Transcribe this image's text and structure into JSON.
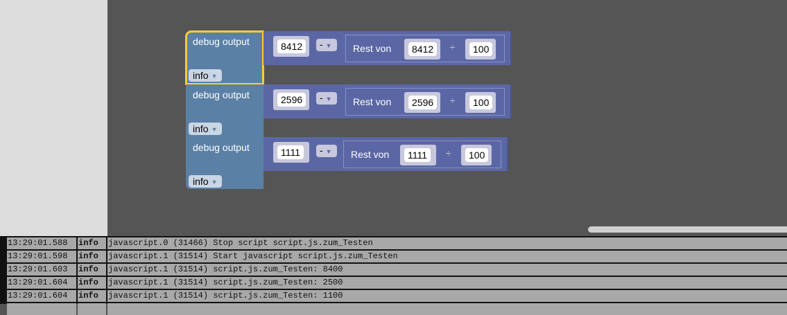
{
  "blocks": [
    {
      "label": "debug output",
      "level": "info",
      "value": "8412",
      "operator": "-",
      "rest_label": "Rest von",
      "dividend": "8412",
      "divide_symbol": "÷",
      "divisor": "100",
      "selected": true
    },
    {
      "label": "debug output",
      "level": "info",
      "value": "2596",
      "operator": "-",
      "rest_label": "Rest von",
      "dividend": "2596",
      "divide_symbol": "÷",
      "divisor": "100",
      "selected": false
    },
    {
      "label": "debug output",
      "level": "info",
      "value": "1111",
      "operator": "-",
      "rest_label": "Rest von",
      "dividend": "1111",
      "divide_symbol": "÷",
      "divisor": "100",
      "selected": false
    }
  ],
  "log": [
    {
      "time": "13:29:01.588",
      "level": "info",
      "message": "javascript.0 (31466) Stop script script.js.zum_Testen"
    },
    {
      "time": "13:29:01.598",
      "level": "info",
      "message": "javascript.1 (31514) Start javascript script.js.zum_Testen"
    },
    {
      "time": "13:29:01.603",
      "level": "info",
      "message": "javascript.1 (31514) script.js.zum_Testen: 8400"
    },
    {
      "time": "13:29:01.604",
      "level": "info",
      "message": "javascript.1 (31514) script.js.zum_Testen: 2500"
    },
    {
      "time": "13:29:01.604",
      "level": "info",
      "message": "javascript.1 (31514) script.js.zum_Testen: 1100"
    }
  ],
  "colors": {
    "debug_block": "#5b80a5",
    "math_block": "#5b67a5",
    "selection": "#ffcc33",
    "workspace": "#555555"
  }
}
